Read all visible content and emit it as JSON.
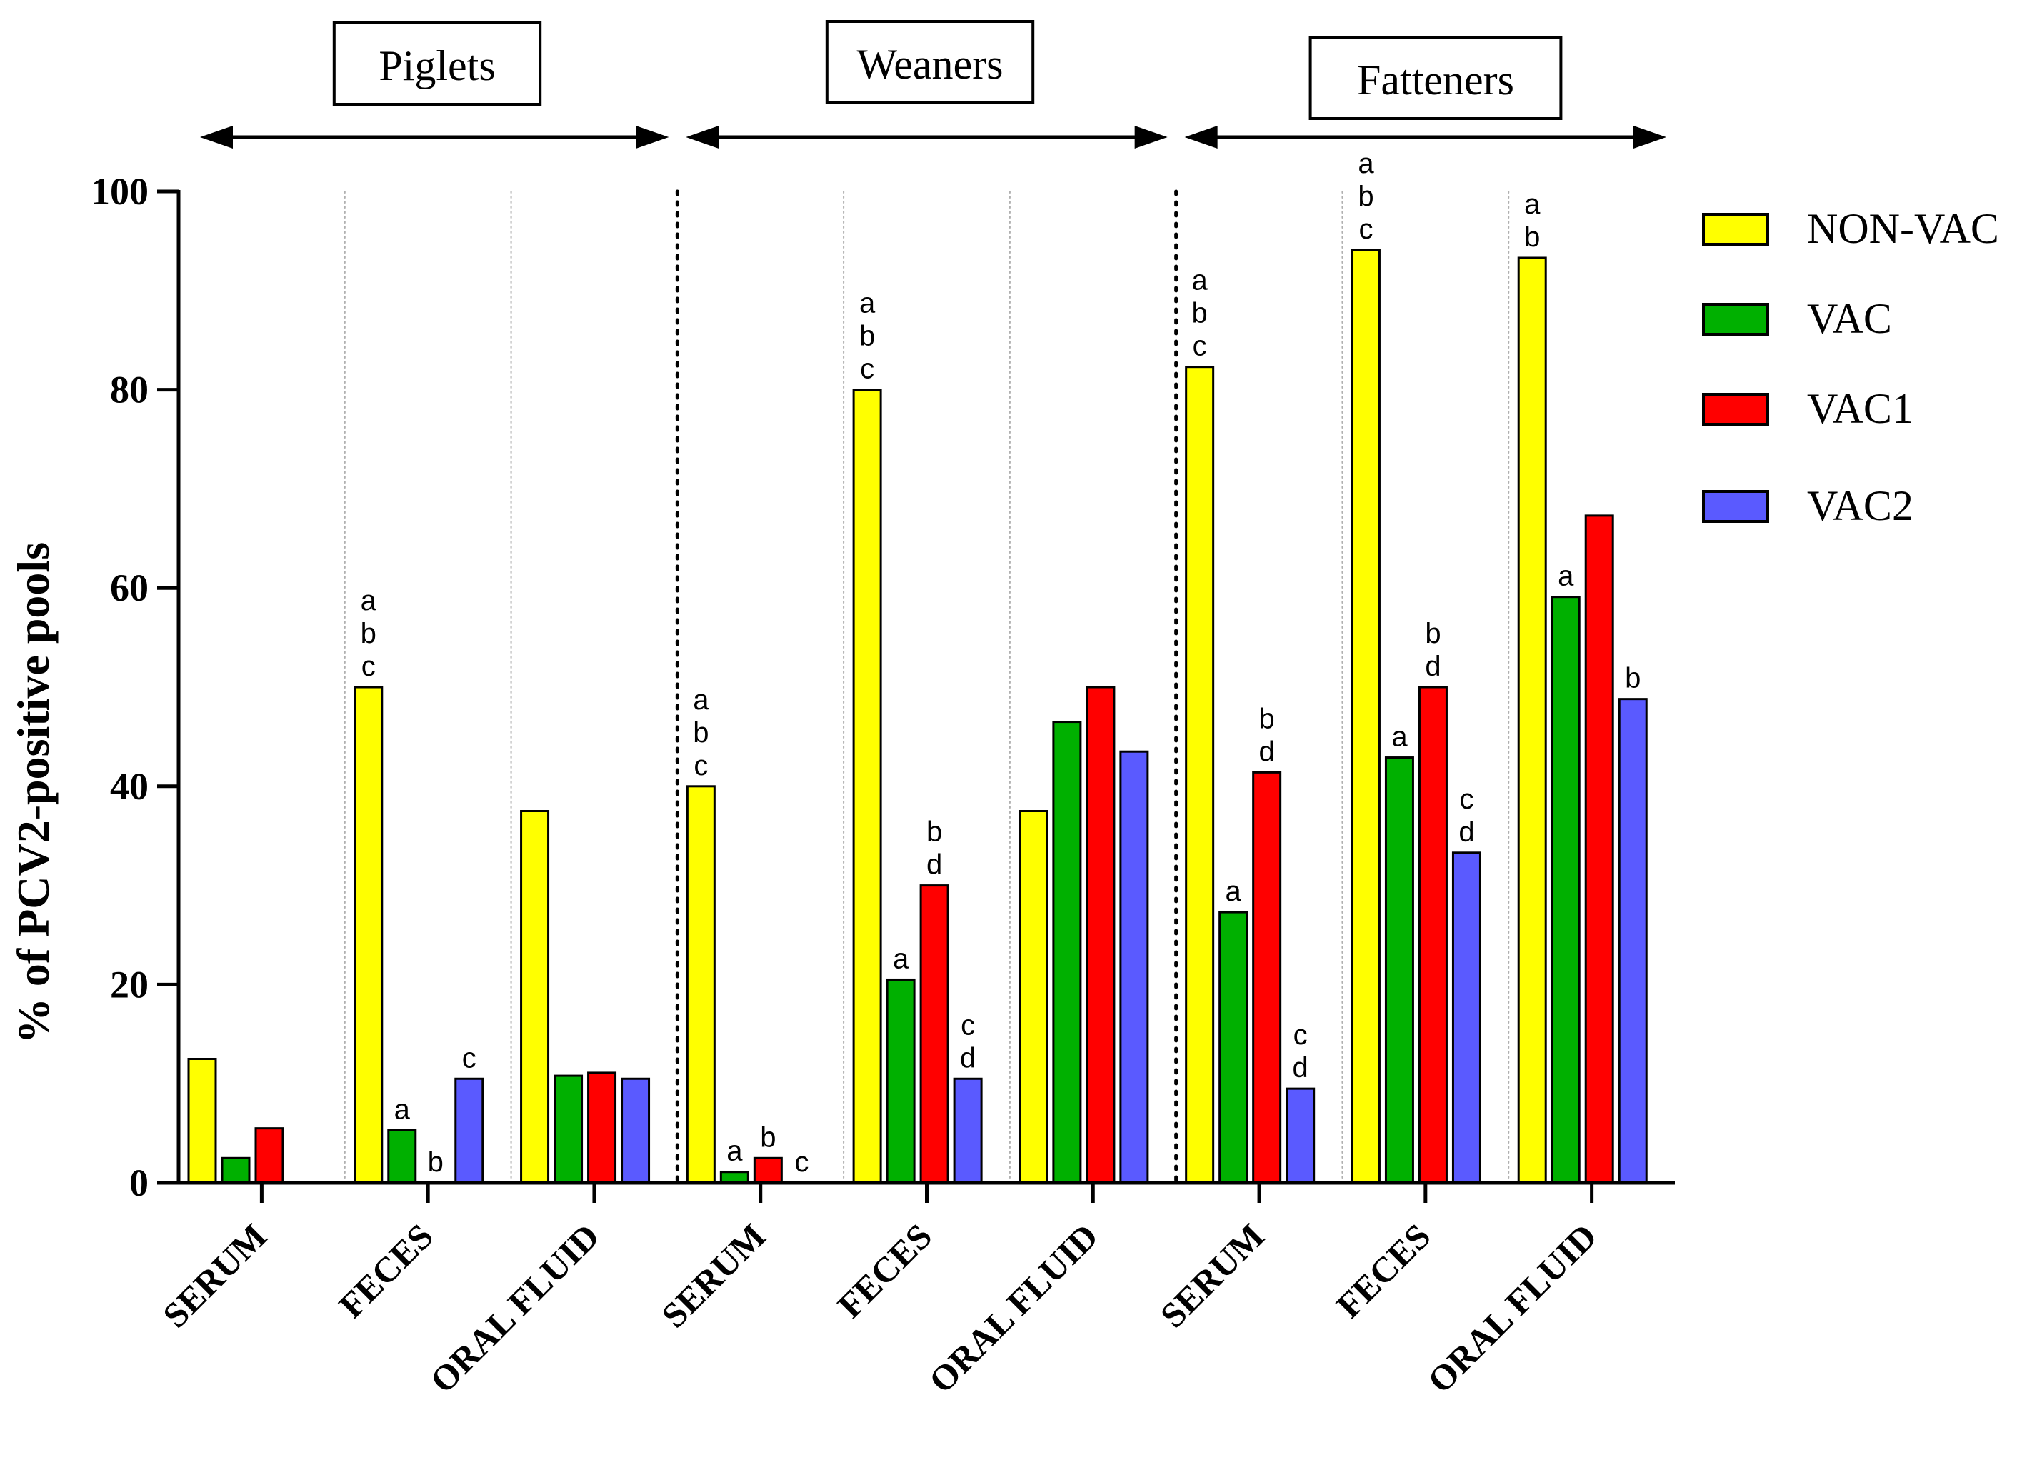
{
  "chart_data": {
    "type": "bar",
    "ylabel": "% of PCV2-positive pools",
    "ylim": [
      0,
      100
    ],
    "yticks": [
      0,
      20,
      40,
      60,
      80,
      100
    ],
    "groups": [
      {
        "label": "Piglets",
        "categories": [
          "SERUM",
          "FECES",
          "ORAL FLUID"
        ]
      },
      {
        "label": "Weaners",
        "categories": [
          "SERUM",
          "FECES",
          "ORAL FLUID"
        ]
      },
      {
        "label": "Fatteners",
        "categories": [
          "SERUM",
          "FECES",
          "ORAL FLUID"
        ]
      }
    ],
    "series": [
      {
        "name": "NON-VAC",
        "color": "#ffff00",
        "values": [
          12.5,
          50,
          37.5,
          40,
          80,
          37.5,
          82.3,
          94.1,
          93.3
        ],
        "labels": [
          "",
          "a\nb\nc",
          "",
          "a\nb\nc",
          "a\nb\nc",
          "",
          "a\nb\nc",
          "a\nb\nc",
          "a\nb"
        ]
      },
      {
        "name": "VAC",
        "color": "#00b000",
        "values": [
          2.5,
          5.3,
          10.8,
          1.1,
          20.5,
          46.5,
          27.3,
          42.9,
          59.1
        ],
        "labels": [
          "",
          "a",
          "",
          "a",
          "a",
          "",
          "a",
          "a",
          "a"
        ]
      },
      {
        "name": "VAC1",
        "color": "#ff0000",
        "values": [
          5.5,
          0,
          11.1,
          2.5,
          30,
          50,
          41.4,
          50,
          67.3
        ],
        "labels": [
          "",
          "b",
          "",
          "b",
          "b\nd",
          "",
          "b\nd",
          "b\nd",
          ""
        ]
      },
      {
        "name": "VAC2",
        "color": "#5a5aff",
        "values": [
          null,
          10.5,
          10.5,
          0,
          10.5,
          43.5,
          9.5,
          33.3,
          48.8
        ],
        "labels": [
          "",
          "c",
          "",
          "c",
          "c\nd",
          "",
          "c\nd",
          "c\nd",
          "b"
        ]
      }
    ]
  }
}
